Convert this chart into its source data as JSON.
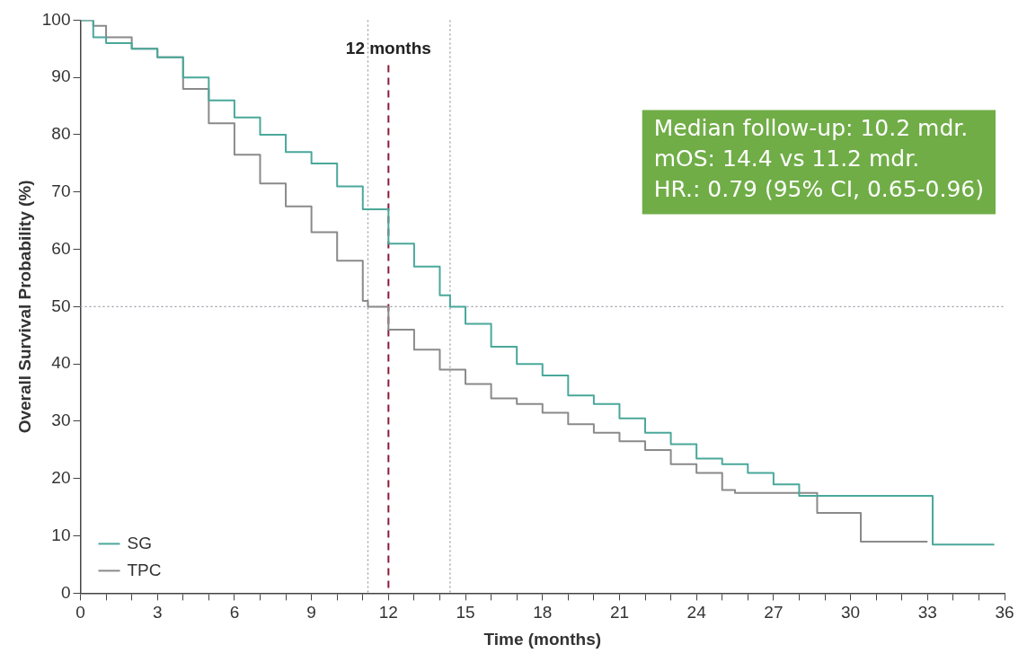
{
  "chart_data": {
    "type": "step",
    "xlabel": "Time (months)",
    "ylabel": "Overall Survival Probability (%)",
    "xlim": [
      0,
      36
    ],
    "ylim": [
      0,
      100
    ],
    "xticks": [
      0,
      {
        "value": 1,
        "label": null
      },
      {
        "value": 2,
        "label": null
      },
      3,
      {
        "value": 4,
        "label": null
      },
      {
        "value": 5,
        "label": null
      },
      6,
      {
        "value": 7,
        "label": null
      },
      {
        "value": 8,
        "label": null
      },
      9,
      {
        "value": 10,
        "label": null
      },
      {
        "value": 11,
        "label": null
      },
      12,
      {
        "value": 13,
        "label": null
      },
      {
        "value": 14,
        "label": null
      },
      15,
      {
        "value": 16,
        "label": null
      },
      {
        "value": 17,
        "label": null
      },
      18,
      {
        "value": 19,
        "label": null
      },
      {
        "value": 20,
        "label": null
      },
      21,
      {
        "value": 22,
        "label": null
      },
      {
        "value": 23,
        "label": null
      },
      24,
      {
        "value": 25,
        "label": null
      },
      {
        "value": 26,
        "label": null
      },
      27,
      {
        "value": 28,
        "label": null
      },
      {
        "value": 29,
        "label": null
      },
      30,
      {
        "value": 31,
        "label": null
      },
      {
        "value": 32,
        "label": null
      },
      33,
      {
        "value": 34,
        "label": null
      },
      {
        "value": 35,
        "label": null
      },
      36
    ],
    "yticks": [
      0,
      10,
      20,
      30,
      40,
      50,
      60,
      70,
      80,
      90,
      100
    ],
    "grid": false,
    "legend": "bottom left",
    "line_style": "solid",
    "series": [
      {
        "name": "SG",
        "color": "#4aa89a",
        "x": [
          0,
          0.5,
          1,
          2,
          3,
          4,
          5,
          6,
          7,
          8,
          9,
          10,
          11,
          12,
          13,
          14,
          14.4,
          15,
          16,
          17,
          18,
          19,
          20,
          21,
          22,
          23,
          24,
          25,
          26,
          27,
          28,
          33.2,
          35.6
        ],
        "values": [
          100,
          97,
          96,
          95,
          93.5,
          90,
          86,
          83,
          80,
          77,
          75,
          71,
          67,
          61,
          57,
          52,
          50,
          47,
          43,
          40,
          38,
          34.5,
          33,
          30.5,
          28,
          26,
          23.5,
          22.5,
          21,
          19,
          17,
          8.5,
          8.5
        ]
      },
      {
        "name": "TPC",
        "color": "#8a8a8a",
        "x": [
          0,
          0.5,
          1,
          2,
          3,
          4,
          5,
          6,
          7,
          8,
          9,
          10,
          11,
          11.2,
          12,
          13,
          14,
          15,
          16,
          17,
          18,
          19,
          20,
          21,
          22,
          23,
          24,
          25,
          25.5,
          28.7,
          30.4,
          33
        ],
        "values": [
          100,
          99,
          97,
          95,
          93.5,
          88,
          82,
          76.5,
          71.5,
          67.5,
          63,
          58,
          51,
          50,
          46,
          42.5,
          39,
          36.5,
          34,
          33,
          31.5,
          29.5,
          28,
          26.5,
          25,
          22.5,
          21,
          18,
          17.5,
          14,
          9,
          9
        ]
      }
    ],
    "ref_lines": [
      {
        "axis": "x",
        "value": 12,
        "label": "12 months",
        "color": "#8b1a3a",
        "line_style": "dashed"
      },
      {
        "axis": "y",
        "value": 50,
        "color": "#9a9aa8",
        "line_style": "dotted"
      },
      {
        "axis": "x",
        "value": 11.2,
        "color": "#9a9aa8",
        "line_style": "dotted"
      },
      {
        "axis": "x",
        "value": 14.4,
        "color": "#9a9aa8",
        "line_style": "dotted"
      }
    ],
    "annotations": [
      "Median follow-up: 10.2 mdr.",
      "mOS: 14.4 vs 11.2 mdr.",
      "HR.: 0.79 (95% CI, 0.65-0.96)"
    ]
  }
}
